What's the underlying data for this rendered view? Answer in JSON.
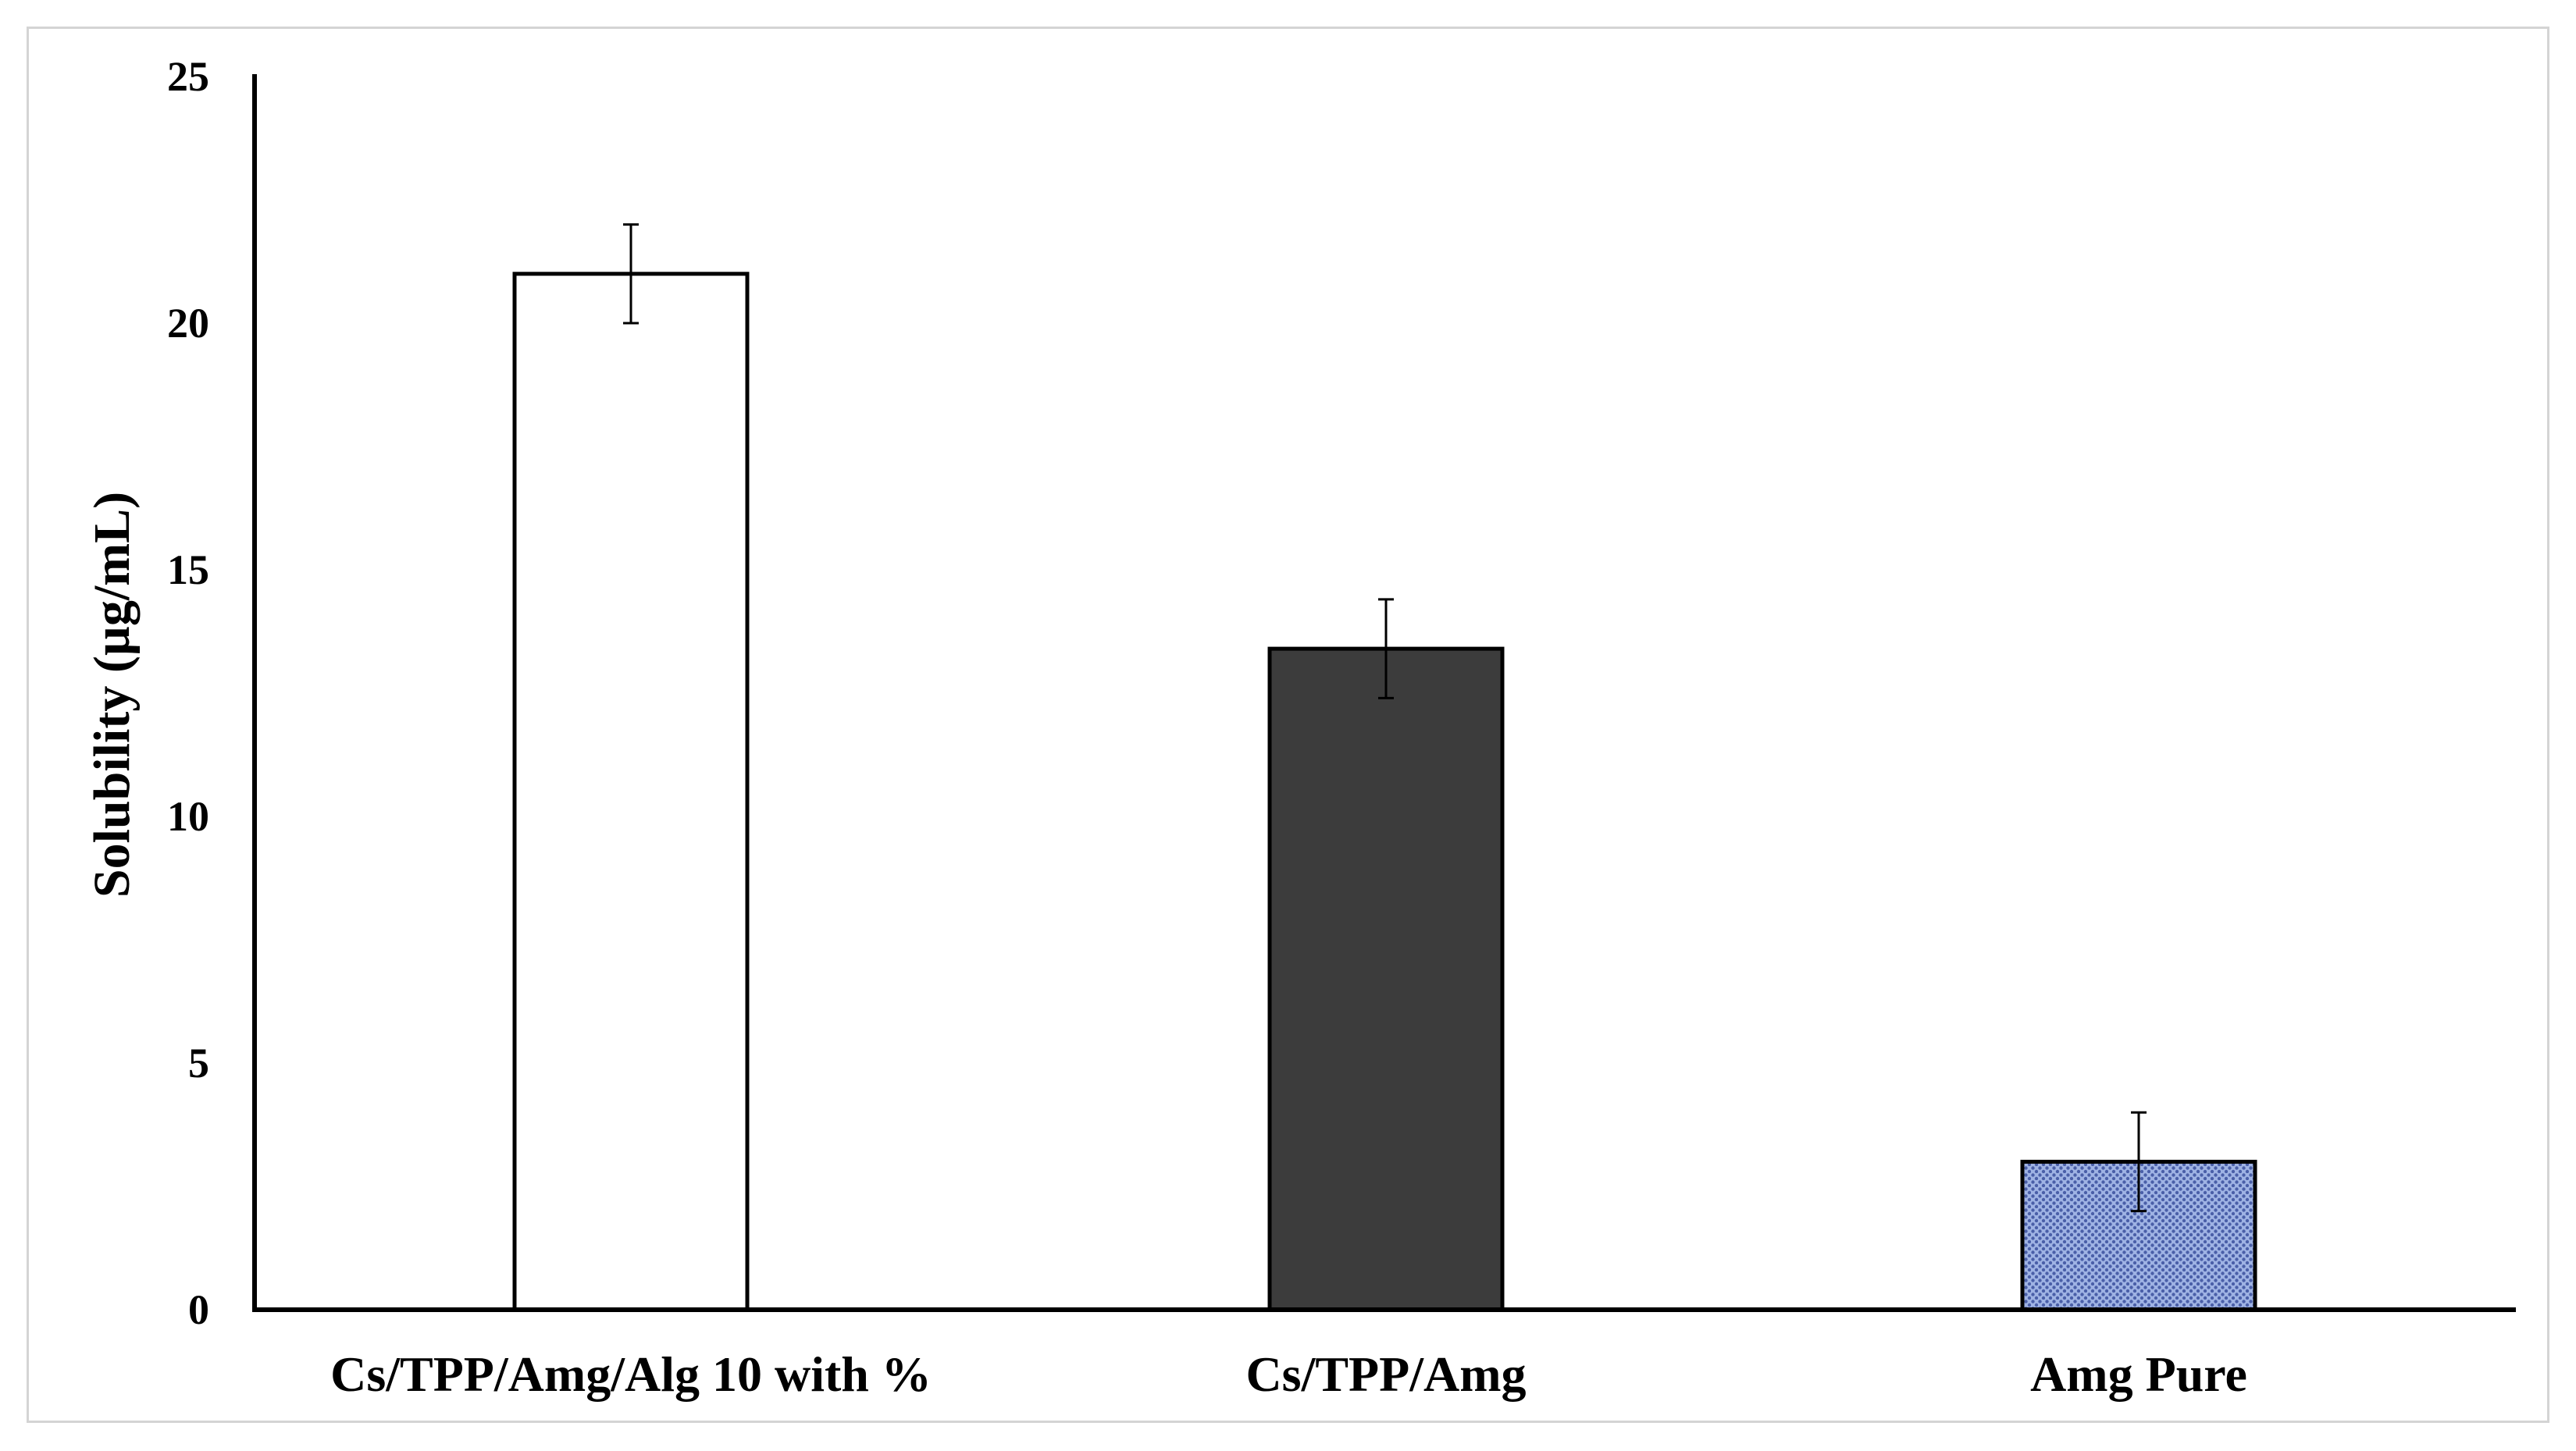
{
  "chart_data": {
    "type": "bar",
    "title": "",
    "xlabel": "",
    "ylabel": "Solubility (µg/mL)",
    "ylim": [
      0,
      25
    ],
    "yticks": [
      "0",
      "5",
      "10",
      "15",
      "20",
      "25"
    ],
    "categories": [
      "Cs/TPP/Amg/Alg 10 with %",
      "Cs/TPP/Amg",
      "Amg Pure"
    ],
    "values": [
      21,
      13.4,
      3
    ],
    "errors": [
      1,
      1,
      1
    ],
    "grid": false,
    "legend": "none",
    "colors": {
      "bar_1_fill": "#ffffff",
      "bar_2_fill": "#3c3c3c",
      "bar_3_fill": "#9fb3e4",
      "bar_3_dots": "#4a5fa8",
      "axis": "#000000"
    }
  }
}
